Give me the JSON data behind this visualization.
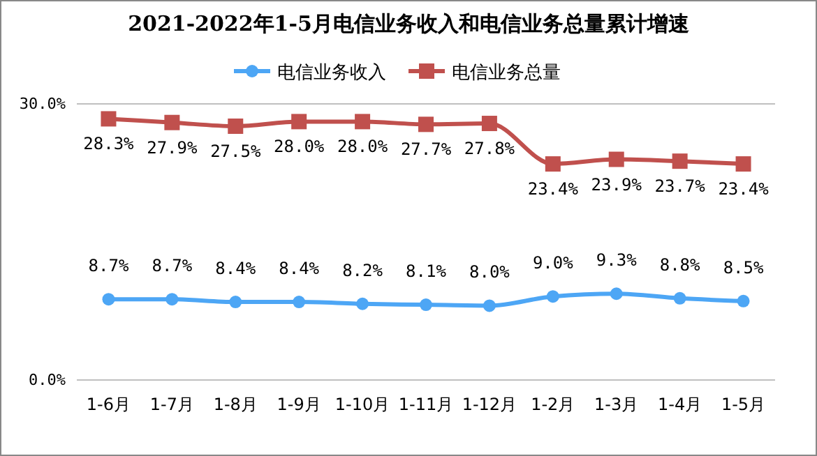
{
  "chart_data": {
    "type": "line",
    "title": "2021-2022年1-5月电信业务收入和电信业务总量累计增速",
    "categories": [
      "1-6月",
      "1-7月",
      "1-8月",
      "1-9月",
      "1-10月",
      "1-11月",
      "1-12月",
      "1-2月",
      "1-3月",
      "1-4月",
      "1-5月"
    ],
    "series": [
      {
        "name": "电信业务收入",
        "color": "#4da6f5",
        "marker": "circle",
        "values": [
          8.7,
          8.7,
          8.4,
          8.4,
          8.2,
          8.1,
          8.0,
          9.0,
          9.3,
          8.8,
          8.5
        ],
        "value_labels": [
          "8.7%",
          "8.7%",
          "8.4%",
          "8.4%",
          "8.2%",
          "8.1%",
          "8.0%",
          "9.0%",
          "9.3%",
          "8.8%",
          "8.5%"
        ]
      },
      {
        "name": "电信业务总量",
        "color": "#c0504d",
        "marker": "square",
        "values": [
          28.3,
          27.9,
          27.5,
          28.0,
          28.0,
          27.7,
          27.8,
          23.4,
          23.9,
          23.7,
          23.4
        ],
        "value_labels": [
          "28.3%",
          "27.9%",
          "27.5%",
          "28.0%",
          "28.0%",
          "27.7%",
          "27.8%",
          "23.4%",
          "23.9%",
          "23.7%",
          "23.4%"
        ]
      }
    ],
    "ylim": [
      0,
      30
    ],
    "yticks": [
      {
        "value": 0,
        "label": "0.0%"
      },
      {
        "value": 30,
        "label": "30.0%"
      }
    ],
    "legend": "top"
  }
}
